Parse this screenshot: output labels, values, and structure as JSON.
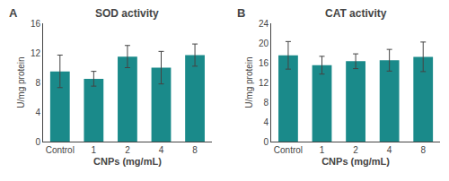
{
  "chart_data": [
    {
      "type": "bar",
      "title": "SOD activity",
      "categories": [
        "Control",
        "1",
        "2",
        "4",
        "8"
      ],
      "values": [
        9.5,
        8.5,
        11.5,
        10.0,
        11.7
      ],
      "errors": [
        2.2,
        1.0,
        1.5,
        2.2,
        1.5
      ],
      "ylabel": "U/mg protein",
      "xlabel": "CNPs (mg/mL)",
      "ylim": [
        0,
        16
      ],
      "yticks": [
        0,
        4,
        8,
        12,
        16
      ],
      "color": "#1a8a8a",
      "grid": false,
      "annotations": [
        "A"
      ]
    },
    {
      "type": "bar",
      "title": "CAT activity",
      "categories": [
        "Control",
        "1",
        "2",
        "4",
        "8"
      ],
      "values": [
        17.5,
        15.5,
        16.3,
        16.5,
        17.2
      ],
      "errors": [
        2.8,
        1.8,
        1.5,
        2.2,
        3.0
      ],
      "ylabel": "U/mg protein",
      "xlabel": "CNPs (mg/mL)",
      "ylim": [
        0,
        24
      ],
      "yticks": [
        0,
        4,
        8,
        12,
        16,
        20,
        24
      ],
      "color": "#1a8a8a",
      "grid": false,
      "annotations": [
        "B"
      ]
    }
  ]
}
